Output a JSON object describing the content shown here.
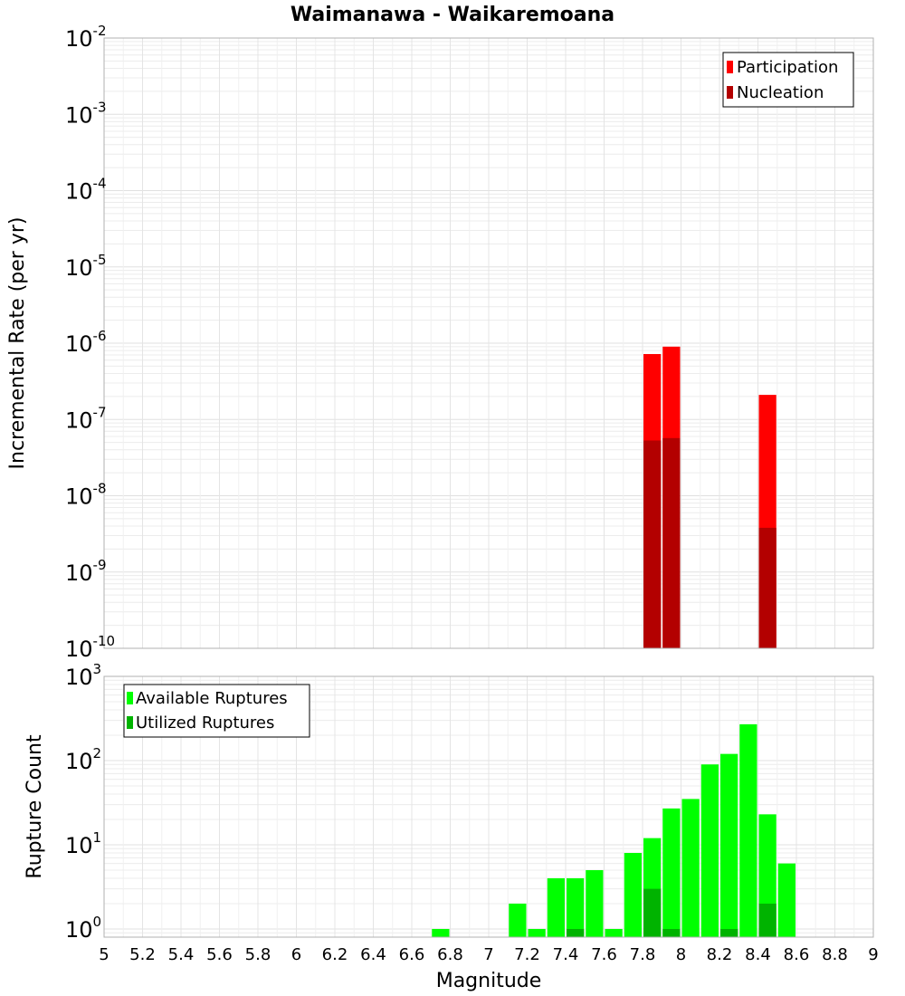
{
  "chart_data": [
    {
      "type": "bar",
      "title": "Waimanawa - Waikaremoana",
      "ylabel": "Incremental Rate (per yr)",
      "xlabel": "",
      "xlim": [
        5,
        9
      ],
      "ylim": [
        1e-10,
        0.01
      ],
      "yscale": "log",
      "grid": true,
      "legend_placement": "top-right",
      "y_ticks": [
        {
          "base": "10",
          "exp": "-2"
        },
        {
          "base": "10",
          "exp": "-3"
        },
        {
          "base": "10",
          "exp": "-4"
        },
        {
          "base": "10",
          "exp": "-5"
        },
        {
          "base": "10",
          "exp": "-6"
        },
        {
          "base": "10",
          "exp": "-7"
        },
        {
          "base": "10",
          "exp": "-8"
        },
        {
          "base": "10",
          "exp": "-9"
        },
        {
          "base": "10",
          "exp": "-10"
        }
      ],
      "bin_width": 0.1,
      "series": [
        {
          "name": "Participation",
          "color": "#ff0000",
          "x": [
            7.85,
            7.95,
            8.45
          ],
          "values": [
            7.2e-07,
            9e-07,
            2.1e-07
          ]
        },
        {
          "name": "Nucleation",
          "color": "#b30000",
          "x": [
            7.85,
            7.95,
            8.45
          ],
          "values": [
            5.3e-08,
            5.7e-08,
            3.8e-09
          ]
        }
      ]
    },
    {
      "type": "bar",
      "title": "",
      "ylabel": "Rupture Count",
      "xlabel": "Magnitude",
      "xlim": [
        5,
        9
      ],
      "ylim": [
        0.8,
        1000
      ],
      "yscale": "log",
      "grid": true,
      "legend_placement": "top-left",
      "x_ticks": [
        "5",
        "5.2",
        "5.4",
        "5.6",
        "5.8",
        "6",
        "6.2",
        "6.4",
        "6.6",
        "6.8",
        "7",
        "7.2",
        "7.4",
        "7.6",
        "7.8",
        "8",
        "8.2",
        "8.4",
        "8.6",
        "8.8",
        "9"
      ],
      "y_ticks": [
        {
          "base": "10",
          "exp": "3"
        },
        {
          "base": "10",
          "exp": "2"
        },
        {
          "base": "10",
          "exp": "1"
        },
        {
          "base": "10",
          "exp": "0"
        }
      ],
      "bin_width": 0.1,
      "series": [
        {
          "name": "Available Ruptures",
          "color": "#00ff00",
          "x": [
            6.75,
            7.15,
            7.25,
            7.35,
            7.45,
            7.55,
            7.65,
            7.75,
            7.85,
            7.95,
            8.05,
            8.15,
            8.25,
            8.35,
            8.45,
            8.55
          ],
          "values": [
            1,
            2,
            1,
            4,
            4,
            5,
            1,
            8,
            12,
            27,
            35,
            90,
            120,
            270,
            23,
            6
          ]
        },
        {
          "name": "Utilized Ruptures",
          "color": "#00b300",
          "x": [
            7.45,
            7.85,
            7.95,
            8.25,
            8.45
          ],
          "values": [
            1,
            3,
            1,
            1,
            2
          ]
        }
      ]
    }
  ]
}
